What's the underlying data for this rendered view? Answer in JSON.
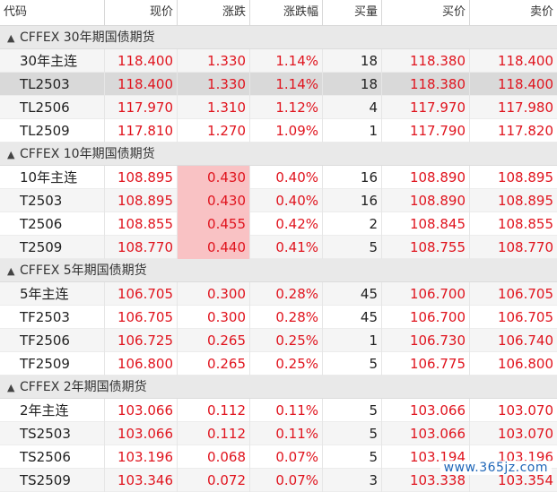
{
  "columns": [
    "代码",
    "现价",
    "涨跌",
    "涨跌幅",
    "买量",
    "买价",
    "卖价"
  ],
  "groups": [
    {
      "label": "CFFEX 30年期国债期货",
      "rows": [
        {
          "code": "30年主连",
          "last": "118.400",
          "change": "1.330",
          "pct": "1.14%",
          "bid_vol": "18",
          "bid": "118.380",
          "ask": "118.400"
        },
        {
          "code": "TL2503",
          "last": "118.400",
          "change": "1.330",
          "pct": "1.14%",
          "bid_vol": "18",
          "bid": "118.380",
          "ask": "118.400",
          "selected": true
        },
        {
          "code": "TL2506",
          "last": "117.970",
          "change": "1.310",
          "pct": "1.12%",
          "bid_vol": "4",
          "bid": "117.970",
          "ask": "117.980"
        },
        {
          "code": "TL2509",
          "last": "117.810",
          "change": "1.270",
          "pct": "1.09%",
          "bid_vol": "1",
          "bid": "117.790",
          "ask": "117.820"
        }
      ]
    },
    {
      "label": "CFFEX 10年期国债期货",
      "rows": [
        {
          "code": "10年主连",
          "last": "108.895",
          "change": "0.430",
          "pct": "0.40%",
          "bid_vol": "16",
          "bid": "108.890",
          "ask": "108.895",
          "highlight_change": true
        },
        {
          "code": "T2503",
          "last": "108.895",
          "change": "0.430",
          "pct": "0.40%",
          "bid_vol": "16",
          "bid": "108.890",
          "ask": "108.895",
          "highlight_change": true
        },
        {
          "code": "T2506",
          "last": "108.855",
          "change": "0.455",
          "pct": "0.42%",
          "bid_vol": "2",
          "bid": "108.845",
          "ask": "108.855",
          "highlight_change": true
        },
        {
          "code": "T2509",
          "last": "108.770",
          "change": "0.440",
          "pct": "0.41%",
          "bid_vol": "5",
          "bid": "108.755",
          "ask": "108.770",
          "highlight_change": true
        }
      ]
    },
    {
      "label": "CFFEX 5年期国债期货",
      "rows": [
        {
          "code": "5年主连",
          "last": "106.705",
          "change": "0.300",
          "pct": "0.28%",
          "bid_vol": "45",
          "bid": "106.700",
          "ask": "106.705"
        },
        {
          "code": "TF2503",
          "last": "106.705",
          "change": "0.300",
          "pct": "0.28%",
          "bid_vol": "45",
          "bid": "106.700",
          "ask": "106.705"
        },
        {
          "code": "TF2506",
          "last": "106.725",
          "change": "0.265",
          "pct": "0.25%",
          "bid_vol": "1",
          "bid": "106.730",
          "ask": "106.740"
        },
        {
          "code": "TF2509",
          "last": "106.800",
          "change": "0.265",
          "pct": "0.25%",
          "bid_vol": "5",
          "bid": "106.775",
          "ask": "106.800"
        }
      ]
    },
    {
      "label": "CFFEX 2年期国债期货",
      "rows": [
        {
          "code": "2年主连",
          "last": "103.066",
          "change": "0.112",
          "pct": "0.11%",
          "bid_vol": "5",
          "bid": "103.066",
          "ask": "103.070"
        },
        {
          "code": "TS2503",
          "last": "103.066",
          "change": "0.112",
          "pct": "0.11%",
          "bid_vol": "5",
          "bid": "103.066",
          "ask": "103.070"
        },
        {
          "code": "TS2506",
          "last": "103.196",
          "change": "0.068",
          "pct": "0.07%",
          "bid_vol": "5",
          "bid": "103.194",
          "ask": "103.196"
        },
        {
          "code": "TS2509",
          "last": "103.346",
          "change": "0.072",
          "pct": "0.07%",
          "bid_vol": "3",
          "bid": "103.338",
          "ask": "103.354"
        }
      ]
    }
  ],
  "watermark": "www.365jz.com",
  "colors": {
    "up": "#e0141e",
    "highlight": "#f9c2c4",
    "group_bg": "#e9e9e9",
    "selected_bg": "#d9d9d9"
  },
  "icons": {
    "group_toggle": "chevron-up-icon"
  }
}
